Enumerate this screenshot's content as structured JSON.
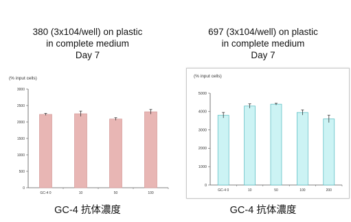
{
  "chart_data": [
    {
      "type": "bar",
      "title_lines": [
        "380 (3x104/well) on plastic",
        "in complete medium",
        "Day  7"
      ],
      "ylabel": "(% input cells)",
      "xlabel": "GC-4 抗体濃度",
      "categories": [
        "GC-4  0",
        "10",
        "50",
        "100"
      ],
      "values": [
        2230,
        2250,
        2090,
        2310
      ],
      "errors": [
        30,
        80,
        40,
        70
      ],
      "ylim": [
        0,
        3000
      ],
      "yticks": [
        0,
        500,
        1000,
        1500,
        2000,
        2500,
        3000
      ],
      "bar_color": "#e8b6b4",
      "bar_stroke": "#d49a98",
      "grid": false
    },
    {
      "type": "bar",
      "title_lines": [
        "697 (3x104/well) on plastic",
        "in complete medium",
        "Day  7"
      ],
      "ylabel": "(% input cells)",
      "xlabel": "GC-4 抗体濃度",
      "categories": [
        "GC-4  0",
        "10",
        "50",
        "100",
        "200"
      ],
      "values": [
        3800,
        4300,
        4400,
        3950,
        3600
      ],
      "errors": [
        150,
        120,
        50,
        140,
        200
      ],
      "ylim": [
        0,
        5000
      ],
      "yticks": [
        0,
        1000,
        2000,
        3000,
        4000,
        5000
      ],
      "bar_color": "#ccf3f4",
      "bar_stroke": "#4fb9bf",
      "grid": false
    }
  ]
}
